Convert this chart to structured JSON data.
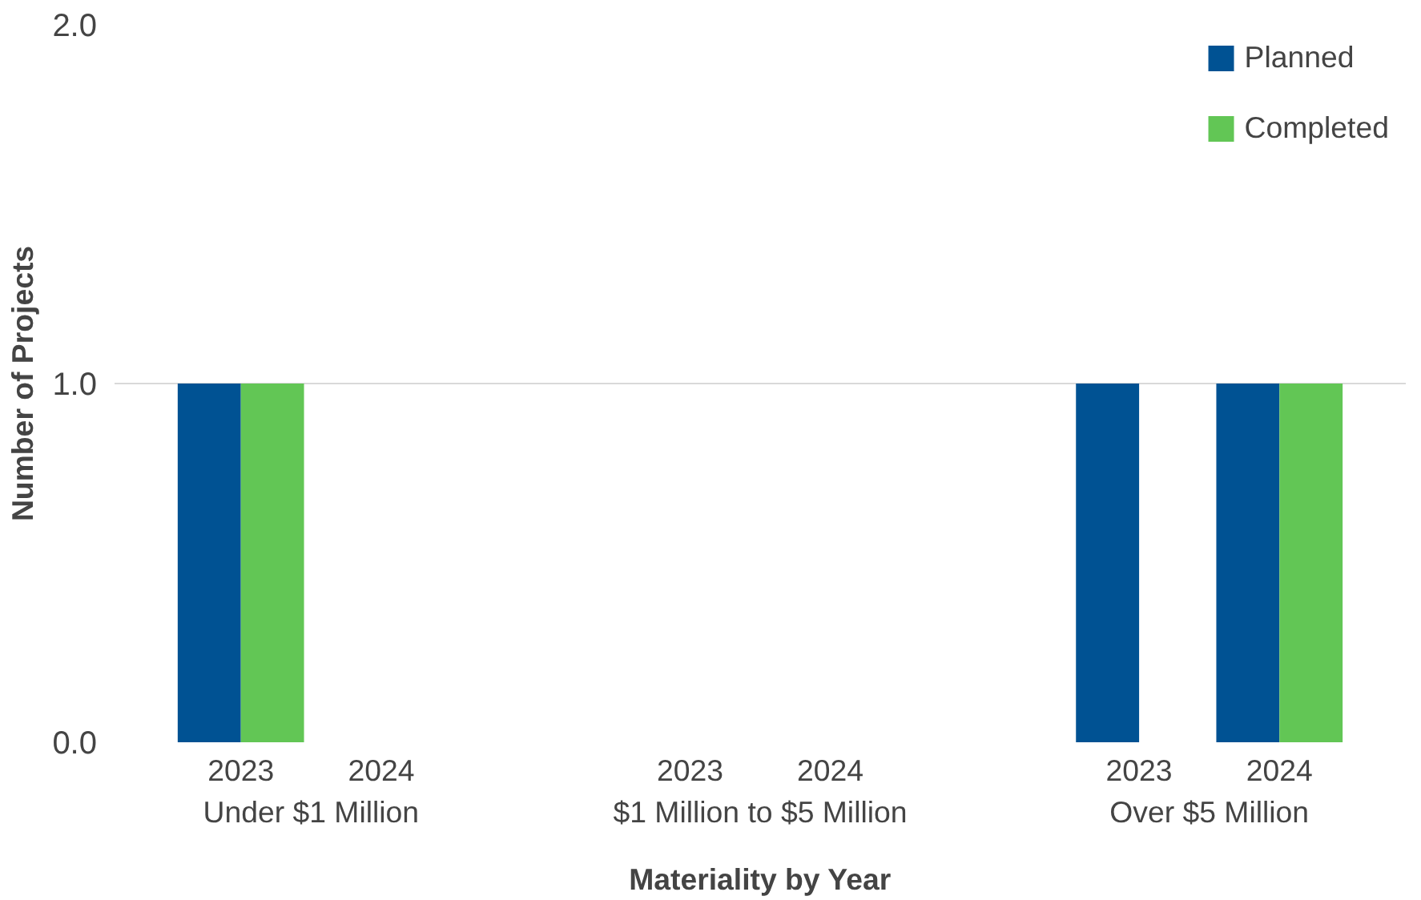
{
  "chart_data": {
    "type": "bar",
    "xlabel": "Materiality by Year",
    "ylabel": "Number of Projects",
    "categories": [
      "2023",
      "2024",
      "2023",
      "2024",
      "2023",
      "2024"
    ],
    "annotations": [
      "Under $1 Million",
      "$1 Million to $5 Million",
      "Over $5 Million"
    ],
    "ylim": [
      0,
      2
    ],
    "yticks": [
      {
        "value": 0,
        "label": "0.0"
      },
      {
        "value": 1,
        "label": "1.0"
      },
      {
        "value": 2,
        "label": "2.0"
      }
    ],
    "grid": "y",
    "legend": "top right",
    "series": [
      {
        "name": "Planned",
        "color": "#005293",
        "values": [
          1,
          0,
          0,
          0,
          1,
          1
        ]
      },
      {
        "name": "Completed",
        "color": "#62c655",
        "values": [
          1,
          0,
          0,
          0,
          0,
          1
        ]
      }
    ]
  }
}
